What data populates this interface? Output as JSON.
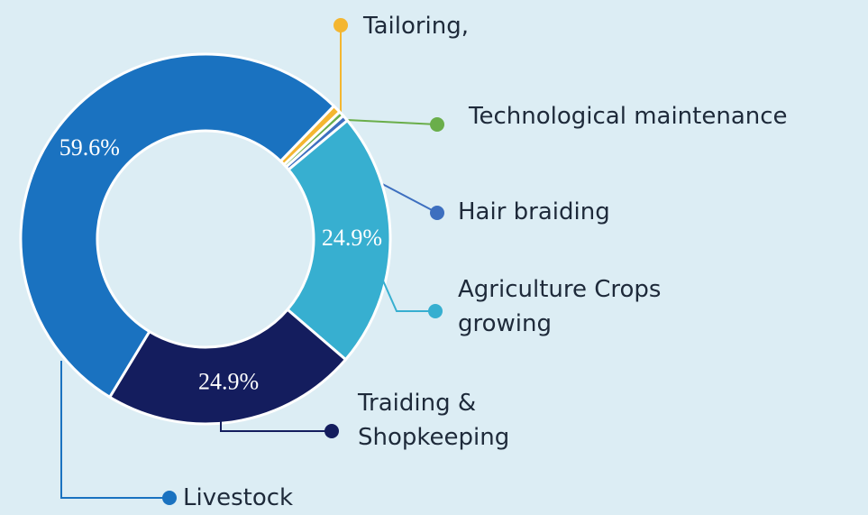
{
  "chart_data": {
    "type": "donut",
    "categories": [
      "Tailoring,",
      "Technological maintenance",
      "Hair braiding",
      "Agriculture Crops growing",
      "Traiding & Shopkeeping",
      "Livestock"
    ],
    "values": [
      0.8,
      0.5,
      0.6,
      24.9,
      24.9,
      59.6
    ],
    "value_labels": [
      null,
      null,
      null,
      "24.9%",
      "24.9%",
      "59.6%"
    ],
    "colors": [
      "#f4b630",
      "#6aae4a",
      "#3d6fbf",
      "#37afd0",
      "#141d5e",
      "#1a72c0"
    ]
  }
}
